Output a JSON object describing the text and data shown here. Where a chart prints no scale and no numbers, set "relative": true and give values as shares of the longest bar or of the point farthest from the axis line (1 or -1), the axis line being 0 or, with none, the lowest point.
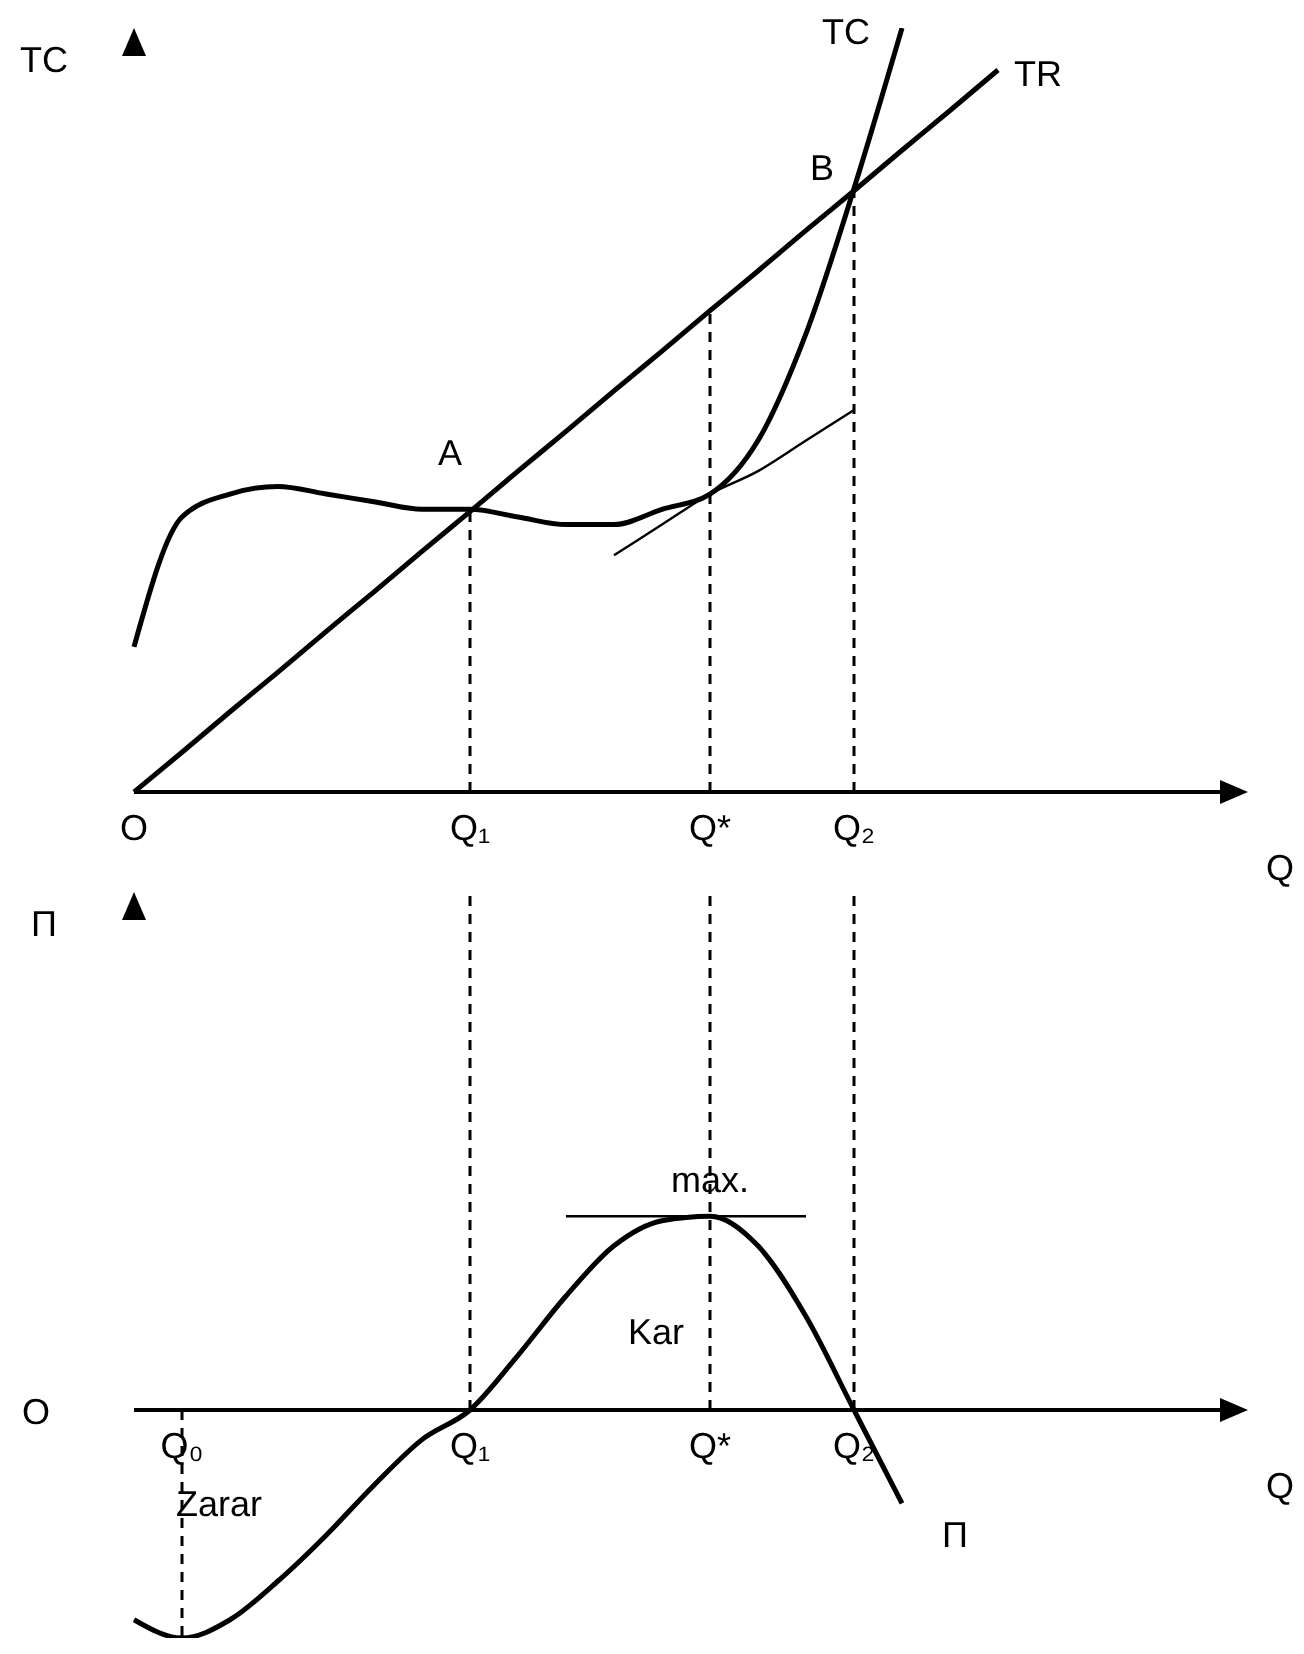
{
  "chart_data": [
    {
      "type": "line",
      "relative": true,
      "ylabel": "TC",
      "xlabel": "Q",
      "legend": false,
      "grid": false,
      "line_style": "solid",
      "marker": "none",
      "categories": [
        "O",
        null,
        null,
        null,
        null,
        null,
        null,
        "Q₁",
        null,
        null,
        null,
        null,
        "Q*",
        null,
        null,
        "Q₂",
        null,
        null,
        null,
        null,
        null,
        null,
        null,
        null
      ],
      "series": [
        {
          "name": "TC",
          "color": "#000000",
          "values": [
            0.19,
            0.36,
            0.39,
            0.4,
            0.39,
            0.38,
            0.37,
            0.37,
            0.36,
            0.35,
            0.35,
            0.37,
            0.39,
            0.46,
            0.6,
            0.79,
            1,
            null,
            null,
            null,
            null,
            null,
            null,
            null
          ]
        },
        {
          "name": "TR",
          "color": "#000000",
          "values": [
            0,
            0.052,
            0.105,
            0.157,
            0.21,
            0.262,
            0.315,
            0.367,
            0.42,
            0.472,
            0.525,
            0.577,
            0.63,
            0.682,
            0.735,
            0.787,
            0.84,
            0.892,
            0.945,
            null,
            null,
            null,
            null,
            null
          ]
        },
        {
          "color": "#000000",
          "values": [
            null,
            null,
            null,
            null,
            null,
            null,
            null,
            null,
            null,
            null,
            0.31,
            0.35,
            0.39,
            0.42,
            0.46,
            0.5,
            null,
            null,
            null,
            null,
            null,
            null,
            null,
            null
          ]
        }
      ],
      "ref_lines": [
        {
          "axis": "x",
          "value": "Q₁",
          "line_style": "dashed"
        },
        {
          "axis": "x",
          "value": "Q*",
          "line_style": "dashed"
        },
        {
          "axis": "x",
          "value": "Q₂",
          "line_style": "dashed"
        }
      ],
      "annotations": [
        {
          "text": "A",
          "x": "Q₁",
          "y": 0.37
        },
        {
          "text": "B",
          "x": "Q₂",
          "y": 0.79
        }
      ]
    },
    {
      "type": "line",
      "relative": true,
      "ylabel": "Π",
      "xlabel": "Q",
      "legend": false,
      "grid": false,
      "line_style": "solid",
      "marker": "none",
      "categories": [
        null,
        "Q₀",
        null,
        null,
        null,
        null,
        null,
        "Q₁",
        null,
        null,
        null,
        null,
        "Q*",
        null,
        null,
        "Q₂",
        null,
        null,
        null,
        null,
        null,
        null,
        null,
        null
      ],
      "series": [
        {
          "name": "Π",
          "color": "#000000",
          "values": [
            -0.92,
            -1,
            -0.92,
            -0.75,
            -0.55,
            -0.33,
            -0.13,
            0,
            0.24,
            0.5,
            0.72,
            0.83,
            0.85,
            0.72,
            0.41,
            0,
            -0.41,
            null,
            null,
            null,
            null,
            null,
            null,
            null
          ]
        },
        {
          "color": "#000000",
          "values": [
            null,
            null,
            null,
            null,
            null,
            null,
            null,
            null,
            null,
            0.85,
            0.85,
            0.85,
            0.85,
            0.85,
            0.85,
            null,
            null,
            null,
            null,
            null,
            null,
            null,
            null,
            null
          ]
        }
      ],
      "ref_lines": [
        {
          "axis": "x",
          "value": "Q₀",
          "line_style": "dashed"
        },
        {
          "axis": "x",
          "value": "Q₁",
          "line_style": "dashed"
        },
        {
          "axis": "x",
          "value": "Q*",
          "line_style": "dashed"
        },
        {
          "axis": "x",
          "value": "Q₂",
          "line_style": "dashed"
        }
      ],
      "annotations": [
        {
          "text": "max.",
          "x": "Q*",
          "y": 0.85
        },
        "Kar",
        "Zarar",
        "O"
      ]
    }
  ]
}
